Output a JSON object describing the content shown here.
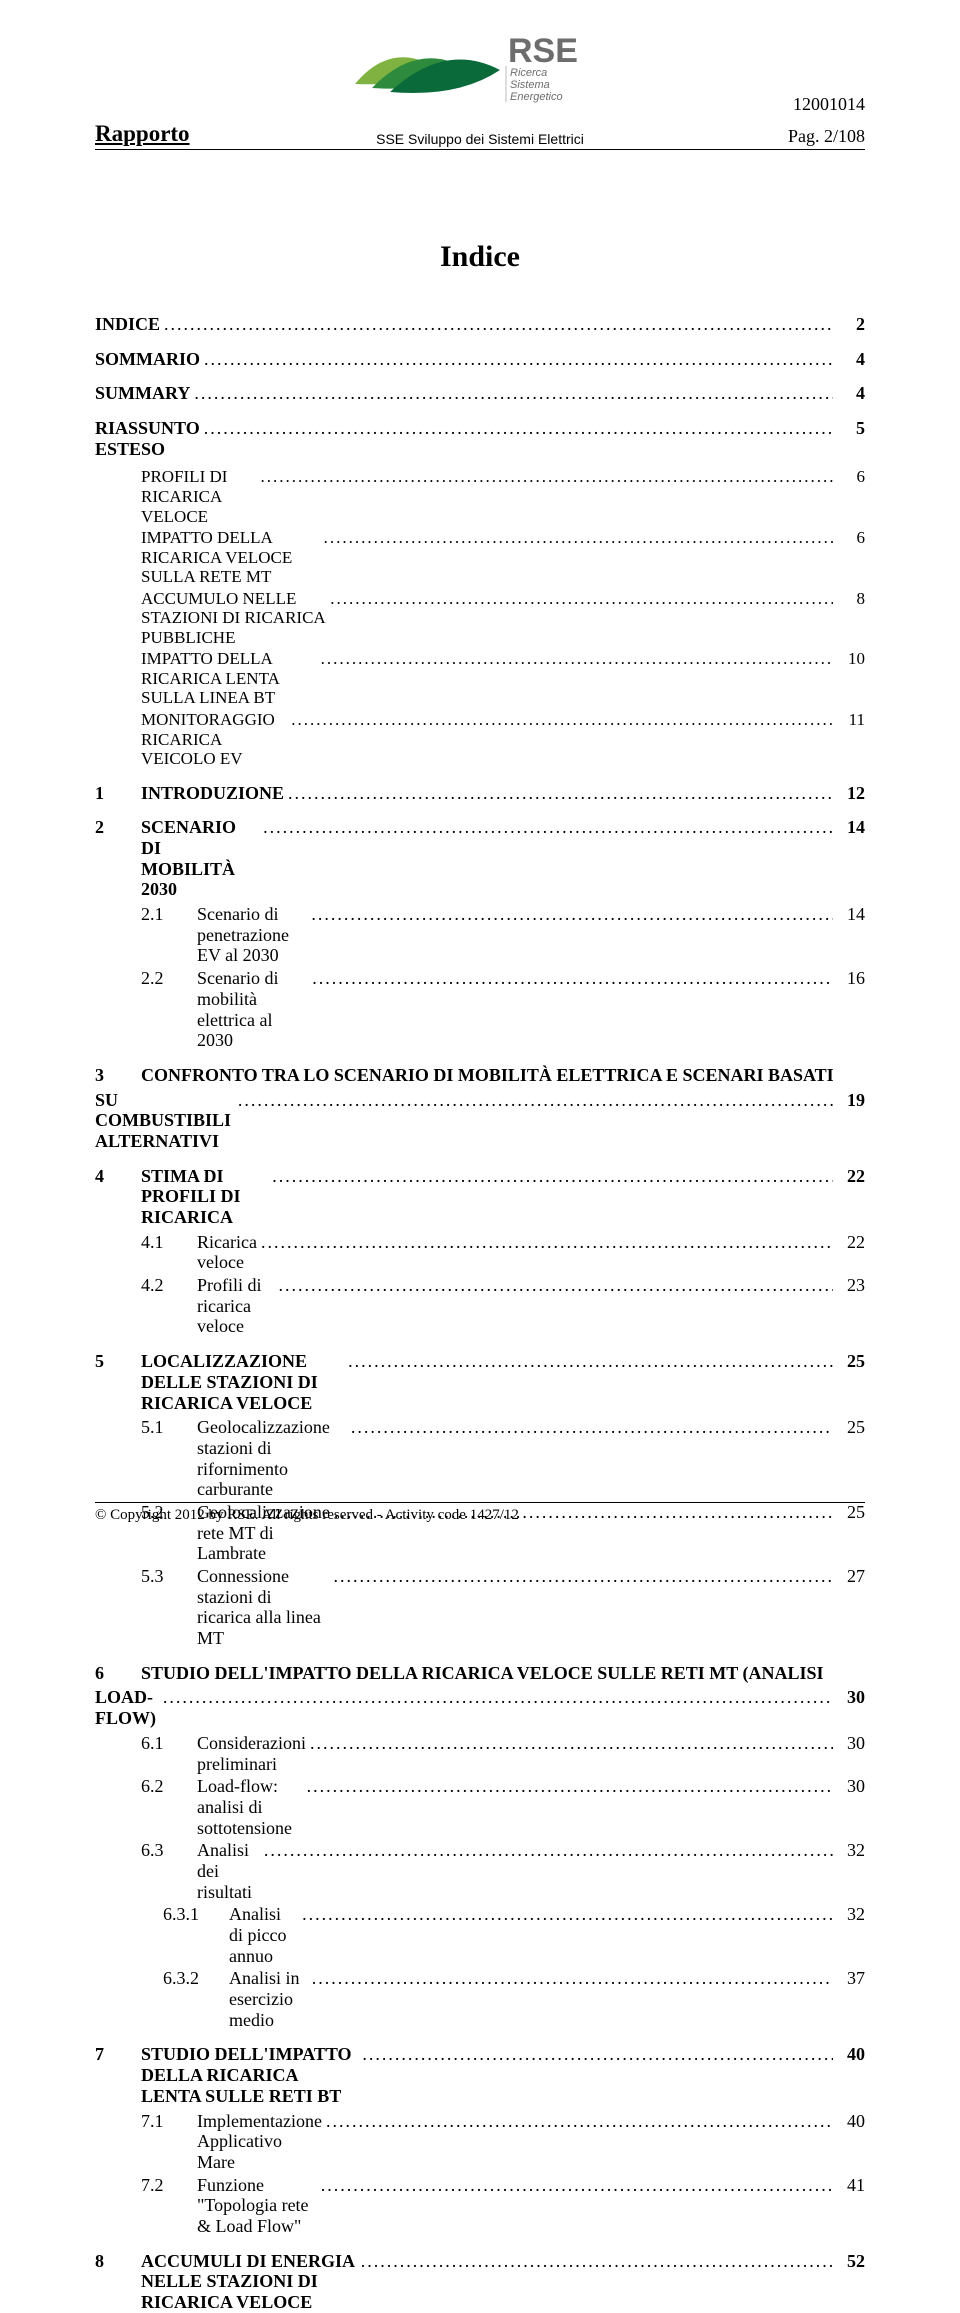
{
  "header": {
    "doc_number": "12001014",
    "rapport": "Rapporto",
    "subtitle": "SSE Sviluppo dei Sistemi Elettrici",
    "page": "Pag. 2/108"
  },
  "logo": {
    "name_line1": "RSE",
    "tag1": "Ricerca",
    "tag2": "Sistema",
    "tag3": "Energetico",
    "leaf_colors": [
      "#7fb241",
      "#2e8b3d",
      "#0a6a3a"
    ],
    "text_color": "#6d6d6d"
  },
  "title": "Indice",
  "toc": [
    {
      "level": 0,
      "num": "",
      "label": "INDICE",
      "page": "2"
    },
    {
      "level": 0,
      "num": "",
      "label": "SOMMARIO",
      "page": "4"
    },
    {
      "level": 0,
      "num": "",
      "label": "SUMMARY",
      "page": "4"
    },
    {
      "level": 0,
      "num": "",
      "label": "RIASSUNTO ESTESO",
      "page": "5"
    },
    {
      "level": 2,
      "num": "",
      "label": "PROFILI DI RICARICA VELOCE",
      "page": "6",
      "small": true
    },
    {
      "level": 2,
      "num": "",
      "label": "IMPATTO DELLA RICARICA VELOCE SULLA RETE MT",
      "page": "6",
      "small": true
    },
    {
      "level": 2,
      "num": "",
      "label": "ACCUMULO NELLE STAZIONI DI RICARICA PUBBLICHE",
      "page": "8",
      "small": true
    },
    {
      "level": 2,
      "num": "",
      "label": "IMPATTO DELLA RICARICA LENTA SULLA LINEA BT",
      "page": "10",
      "small": true
    },
    {
      "level": 2,
      "num": "",
      "label": "MONITORAGGIO RICARICA VEICOLO EV",
      "page": "11",
      "small": true
    },
    {
      "level": 1,
      "num": "1",
      "label": "INTRODUZIONE",
      "page": "12"
    },
    {
      "level": 1,
      "num": "2",
      "label": "SCENARIO DI MOBILITÀ 2030",
      "page": "14"
    },
    {
      "level": 2,
      "num": "2.1",
      "label": "Scenario di penetrazione EV al 2030",
      "page": "14"
    },
    {
      "level": 2,
      "num": "2.2",
      "label": "Scenario di mobilità elettrica al 2030",
      "page": "16"
    },
    {
      "level": 1,
      "num": "3",
      "label_lines": [
        "CONFRONTO TRA LO SCENARIO DI MOBILITÀ ELETTRICA E SCENARI BASATI",
        "SU COMBUSTIBILI ALTERNATIVI"
      ],
      "page": "19",
      "multiline": true
    },
    {
      "level": 1,
      "num": "4",
      "label": "STIMA DI PROFILI DI RICARICA",
      "page": "22"
    },
    {
      "level": 2,
      "num": "4.1",
      "label": "Ricarica veloce",
      "page": "22"
    },
    {
      "level": 2,
      "num": "4.2",
      "label": "Profili di ricarica veloce",
      "page": "23"
    },
    {
      "level": 1,
      "num": "5",
      "label": "LOCALIZZAZIONE DELLE STAZIONI DI RICARICA VELOCE",
      "page": "25"
    },
    {
      "level": 2,
      "num": "5.1",
      "label": "Geolocalizzazione stazioni di rifornimento carburante",
      "page": "25"
    },
    {
      "level": 2,
      "num": "5.2",
      "label": "Geolocalizzazione rete MT di Lambrate",
      "page": "25"
    },
    {
      "level": 2,
      "num": "5.3",
      "label": "Connessione stazioni di ricarica alla linea MT",
      "page": "27"
    },
    {
      "level": 1,
      "num": "6",
      "label_lines": [
        "STUDIO DELL'IMPATTO DELLA RICARICA VELOCE SULLE RETI MT (ANALISI",
        "LOAD-FLOW)"
      ],
      "page": "30",
      "multiline": true
    },
    {
      "level": 2,
      "num": "6.1",
      "label": "Considerazioni preliminari",
      "page": "30"
    },
    {
      "level": 2,
      "num": "6.2",
      "label": "Load-flow: analisi di sottotensione",
      "page": "30"
    },
    {
      "level": 2,
      "num": "6.3",
      "label": "Analisi dei risultati",
      "page": "32"
    },
    {
      "level": 3,
      "num": "6.3.1",
      "label": "Analisi di picco annuo",
      "page": "32"
    },
    {
      "level": 3,
      "num": "6.3.2",
      "label": "Analisi in esercizio medio",
      "page": "37"
    },
    {
      "level": 1,
      "num": "7",
      "label": "STUDIO DELL'IMPATTO DELLA RICARICA LENTA SULLE RETI BT",
      "page": "40"
    },
    {
      "level": 2,
      "num": "7.1",
      "label": "Implementazione Applicativo Mare",
      "page": "40"
    },
    {
      "level": 2,
      "num": "7.2",
      "label": "Funzione \"Topologia rete & Load Flow\"",
      "page": "41"
    },
    {
      "level": 1,
      "num": "8",
      "label": "ACCUMULI DI ENERGIA NELLE STAZIONI DI RICARICA VELOCE",
      "page": "52"
    }
  ],
  "footer": "© Copyright 2012 by RSE. All rights reserved - Activity code 1427/12"
}
